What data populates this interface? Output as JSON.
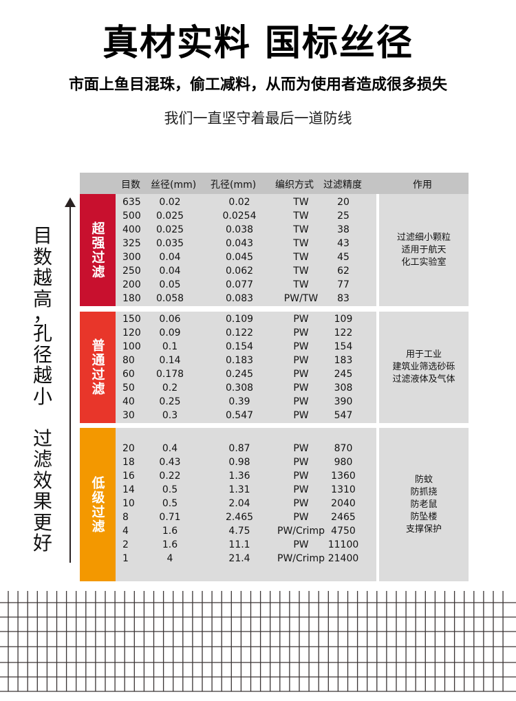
{
  "header": {
    "title": "真材实料 国标丝径",
    "subtitle": "市面上鱼目混珠，偷工减料，从而为使用者造成很多损失",
    "tagline": "我们一直坚守着最后一道防线"
  },
  "side_note": [
    "目",
    "数",
    "越",
    "高",
    "，",
    "孔",
    "径",
    "越",
    "小",
    "",
    "过",
    "滤",
    "效",
    "果",
    "更",
    "好"
  ],
  "table": {
    "columns": [
      "目数",
      "丝径(mm)",
      "孔径(mm)",
      "编织方式",
      "过滤精度",
      "作用"
    ],
    "sections": [
      {
        "label": "超强过滤",
        "color": "#c8102e",
        "effect": [
          "过滤细小颗粒",
          "适用于航天",
          "化工实验室"
        ],
        "rows": [
          [
            "635",
            "0.02",
            "0.02",
            "TW",
            "20"
          ],
          [
            "500",
            "0.025",
            "0.0254",
            "TW",
            "25"
          ],
          [
            "400",
            "0.025",
            "0.038",
            "TW",
            "38"
          ],
          [
            "325",
            "0.035",
            "0.043",
            "TW",
            "43"
          ],
          [
            "300",
            "0.04",
            "0.045",
            "TW",
            "45"
          ],
          [
            "250",
            "0.04",
            "0.062",
            "TW",
            "62"
          ],
          [
            "200",
            "0.05",
            "0.077",
            "TW",
            "77"
          ],
          [
            "180",
            "0.058",
            "0.083",
            "PW/TW",
            "83"
          ]
        ]
      },
      {
        "label": "普通过滤",
        "color": "#e8362a",
        "effect": [
          "用于工业",
          "建筑业筛选砂砾",
          "过滤液体及气体"
        ],
        "rows": [
          [
            "150",
            "0.06",
            "0.109",
            "PW",
            "109"
          ],
          [
            "120",
            "0.09",
            "0.122",
            "PW",
            "122"
          ],
          [
            "100",
            "0.1",
            "0.154",
            "PW",
            "154"
          ],
          [
            "80",
            "0.14",
            "0.183",
            "PW",
            "183"
          ],
          [
            "60",
            "0.178",
            "0.245",
            "PW",
            "245"
          ],
          [
            "50",
            "0.2",
            "0.308",
            "PW",
            "308"
          ],
          [
            "40",
            "0.25",
            "0.39",
            "PW",
            "390"
          ],
          [
            "30",
            "0.3",
            "0.547",
            "PW",
            "547"
          ]
        ]
      },
      {
        "label": "低级过滤",
        "color": "#f39800",
        "effect": [
          "防蚊",
          "防抓挠",
          "防老鼠",
          "防坠楼",
          "支撑保护"
        ],
        "rows": [
          [
            "20",
            "0.4",
            "0.87",
            "PW",
            "870"
          ],
          [
            "18",
            "0.43",
            "0.98",
            "PW",
            "980"
          ],
          [
            "16",
            "0.22",
            "1.36",
            "PW",
            "1360"
          ],
          [
            "14",
            "0.5",
            "1.31",
            "PW",
            "1310"
          ],
          [
            "10",
            "0.5",
            "2.04",
            "PW",
            "2040"
          ],
          [
            "8",
            "0.71",
            "2.465",
            "PW",
            "2465"
          ],
          [
            "4",
            "1.6",
            "4.75",
            "PW/Crimp",
            "4750"
          ],
          [
            "2",
            "1.6",
            "11.1",
            "PW",
            "11100"
          ],
          [
            "1",
            "4",
            "21.4",
            "PW/Crimp",
            "21400"
          ]
        ]
      }
    ]
  }
}
